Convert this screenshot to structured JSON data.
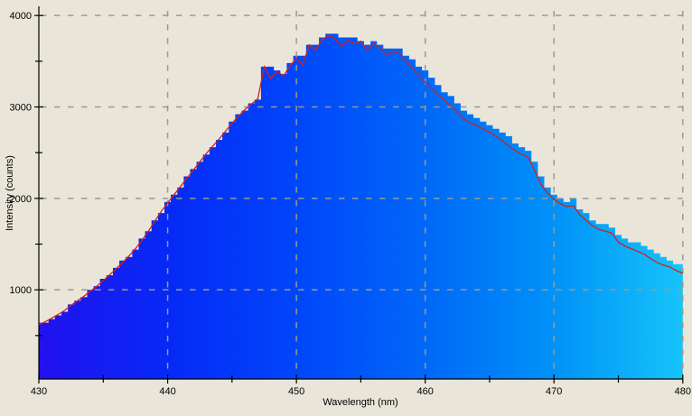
{
  "figure": {
    "background_color": "#e9e6d9",
    "grid_color": "#9a9a92",
    "axis_color": "#000000",
    "line_color": "#cc2222"
  },
  "chart_data": {
    "type": "area",
    "title": "",
    "xlabel": "Wavelength (nm)",
    "ylabel": "Intensity (counts)",
    "xlim": [
      430,
      480
    ],
    "ylim": [
      0,
      4000
    ],
    "x_ticks": [
      430,
      440,
      450,
      460,
      470,
      480
    ],
    "x_minor_ticks": [
      435,
      445,
      455,
      465,
      475
    ],
    "y_ticks": [
      1000,
      2000,
      3000,
      4000
    ],
    "y_minor_ticks": [
      500,
      1500,
      2500,
      3500
    ],
    "grid": true,
    "legend": false,
    "x_start": 430,
    "x_step_nm": 0.5,
    "gradient_stops": [
      {
        "offset": 0.0,
        "color": "#2211ee"
      },
      {
        "offset": 0.2,
        "color": "#0629f6"
      },
      {
        "offset": 0.4,
        "color": "#0046fa"
      },
      {
        "offset": 0.6,
        "color": "#0068f8"
      },
      {
        "offset": 0.8,
        "color": "#0092f8"
      },
      {
        "offset": 1.0,
        "color": "#16c4f9"
      }
    ],
    "fill_step_quantize": 40,
    "series": [
      {
        "name": "spectrum-fill",
        "style": "stepped-area-gradient",
        "values": [
          620,
          650,
          690,
          730,
          775,
          830,
          880,
          930,
          985,
          1040,
          1100,
          1165,
          1230,
          1300,
          1370,
          1450,
          1540,
          1640,
          1750,
          1855,
          1950,
          2040,
          2130,
          2220,
          2310,
          2400,
          2490,
          2570,
          2650,
          2735,
          2820,
          2900,
          2970,
          3030,
          3090,
          3450,
          3450,
          3400,
          3360,
          3460,
          3540,
          3540,
          3690,
          3690,
          3750,
          3790,
          3790,
          3740,
          3740,
          3740,
          3720,
          3680,
          3700,
          3660,
          3620,
          3650,
          3640,
          3570,
          3510,
          3430,
          3380,
          3300,
          3240,
          3170,
          3110,
          3040,
          2970,
          2910,
          2890,
          2850,
          2810,
          2770,
          2720,
          2660,
          2610,
          2560,
          2530,
          2380,
          2230,
          2130,
          2050,
          2000,
          1970,
          1980,
          1880,
          1830,
          1770,
          1730,
          1710,
          1690,
          1600,
          1560,
          1530,
          1500,
          1470,
          1420,
          1380,
          1350,
          1330,
          1290,
          1260
        ]
      },
      {
        "name": "spectrum-line",
        "style": "line",
        "color": "#cc2222",
        "values": [
          620,
          650,
          690,
          730,
          775,
          830,
          880,
          930,
          985,
          1040,
          1100,
          1165,
          1230,
          1300,
          1370,
          1450,
          1540,
          1640,
          1750,
          1855,
          1950,
          2040,
          2130,
          2220,
          2310,
          2400,
          2490,
          2570,
          2650,
          2735,
          2820,
          2900,
          2970,
          3030,
          3090,
          3440,
          3310,
          3390,
          3340,
          3450,
          3530,
          3460,
          3680,
          3620,
          3740,
          3780,
          3750,
          3660,
          3730,
          3690,
          3720,
          3620,
          3700,
          3640,
          3560,
          3610,
          3580,
          3500,
          3430,
          3340,
          3270,
          3200,
          3130,
          3070,
          3010,
          2940,
          2870,
          2820,
          2800,
          2760,
          2720,
          2680,
          2630,
          2570,
          2520,
          2480,
          2450,
          2300,
          2150,
          2060,
          1990,
          1940,
          1910,
          1920,
          1820,
          1760,
          1700,
          1660,
          1640,
          1620,
          1520,
          1480,
          1450,
          1420,
          1390,
          1340,
          1300,
          1270,
          1250,
          1210,
          1180
        ]
      }
    ]
  }
}
